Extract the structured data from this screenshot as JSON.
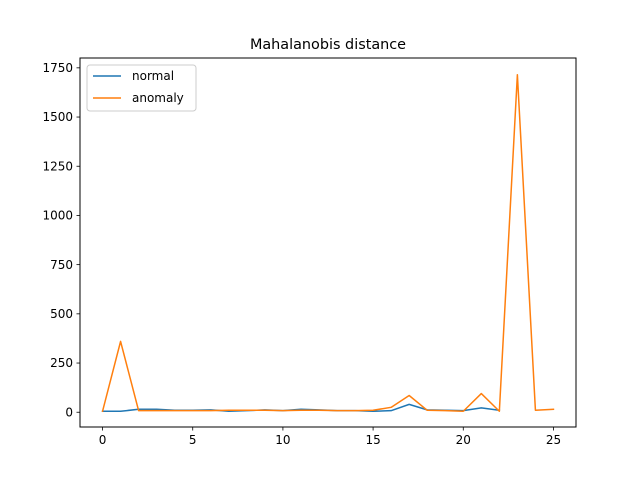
{
  "chart_data": {
    "type": "line",
    "title": "Mahalanobis distance",
    "xlabel": "",
    "ylabel": "",
    "xlim": [
      -1.25,
      26.25
    ],
    "ylim": [
      -75,
      1800
    ],
    "xticks": [
      0,
      5,
      10,
      15,
      20,
      25
    ],
    "yticks": [
      0,
      250,
      500,
      750,
      1000,
      1250,
      1500,
      1750
    ],
    "grid": false,
    "legend_position": "top-left",
    "series": [
      {
        "name": "normal",
        "color": "#1f77b4",
        "x": [
          0,
          1,
          2,
          3,
          4,
          5,
          6,
          7,
          8,
          9,
          10,
          11,
          12,
          13,
          14,
          15,
          16,
          17,
          18,
          19,
          20,
          21,
          22
        ],
        "values": [
          5,
          5,
          15,
          15,
          10,
          10,
          12,
          5,
          8,
          12,
          8,
          15,
          12,
          8,
          8,
          5,
          8,
          40,
          12,
          10,
          8,
          22,
          10
        ]
      },
      {
        "name": "anomaly",
        "color": "#ff7f0e",
        "x": [
          0,
          1,
          2,
          3,
          4,
          5,
          6,
          7,
          8,
          9,
          10,
          11,
          12,
          13,
          14,
          15,
          16,
          17,
          18,
          19,
          20,
          21,
          22,
          23,
          24,
          25
        ],
        "values": [
          5,
          360,
          8,
          8,
          8,
          8,
          8,
          10,
          10,
          10,
          8,
          10,
          10,
          8,
          8,
          10,
          25,
          85,
          10,
          8,
          5,
          95,
          5,
          1715,
          10,
          15
        ]
      }
    ]
  }
}
